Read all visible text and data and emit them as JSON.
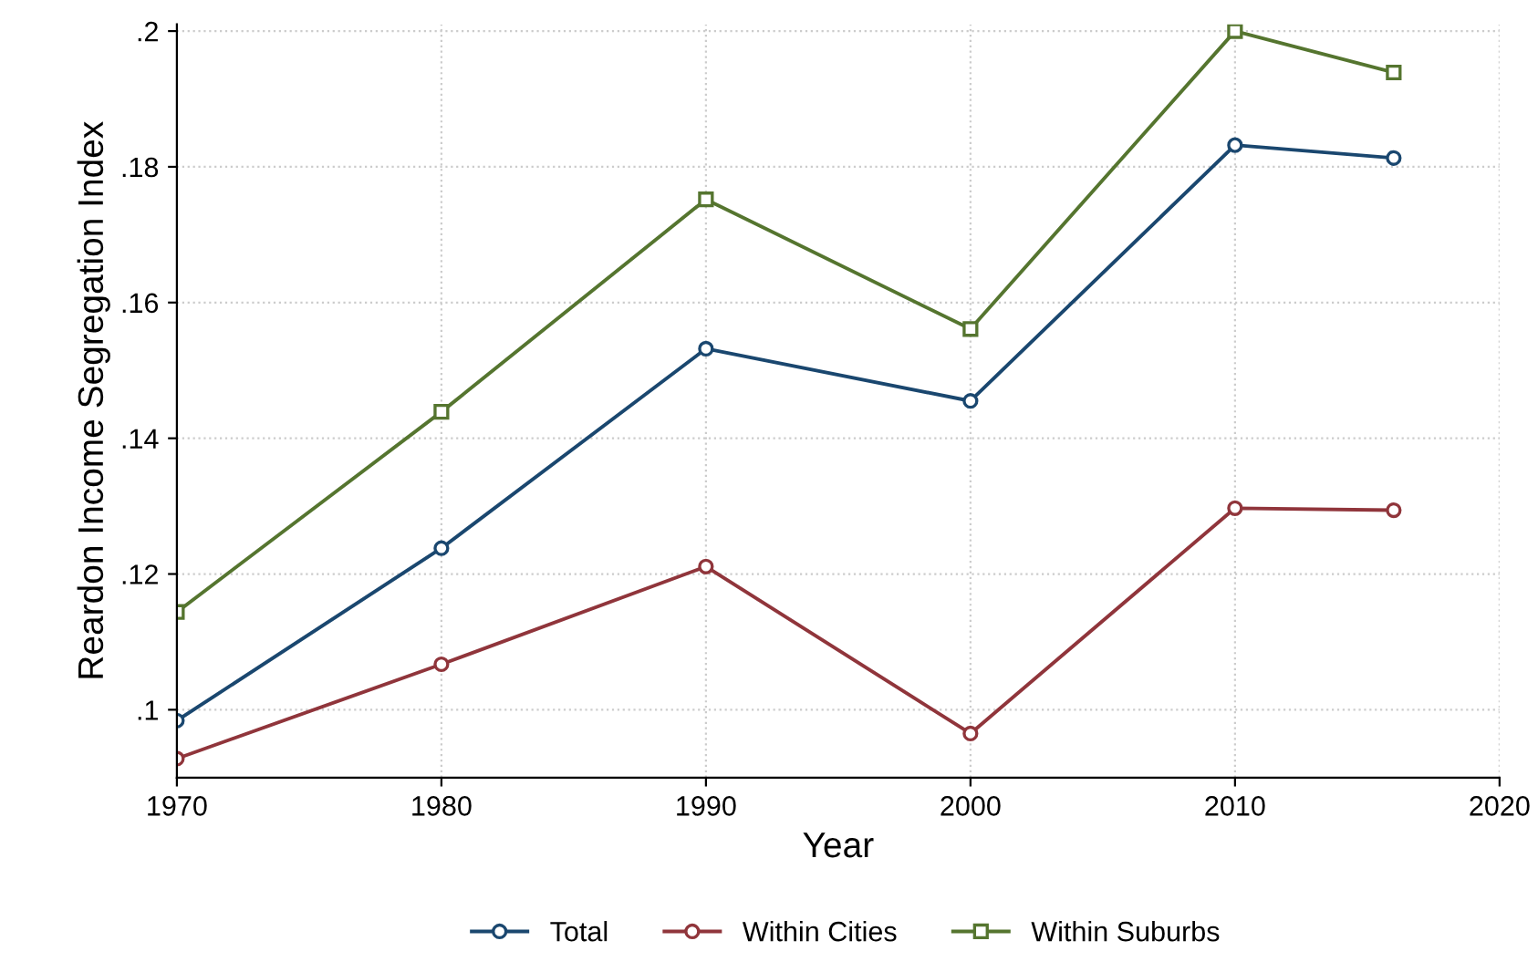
{
  "chart_data": {
    "type": "line",
    "xlabel": "Year",
    "ylabel": "Reardon Income Segregation Index",
    "x": [
      1970,
      1980,
      1990,
      2000,
      2010,
      2016
    ],
    "series": [
      {
        "name": "Total",
        "color": "#1a476f",
        "marker": "circle",
        "values": [
          0.0984,
          0.1238,
          0.1532,
          0.1455,
          0.1832,
          0.1813
        ]
      },
      {
        "name": "Within Cities",
        "color": "#90353b",
        "marker": "circle",
        "values": [
          0.0928,
          0.1067,
          0.1211,
          0.0965,
          0.1297,
          0.1294
        ]
      },
      {
        "name": "Within Suburbs",
        "color": "#55752f",
        "marker": "square",
        "values": [
          0.1144,
          0.1439,
          0.1752,
          0.1561,
          0.2,
          0.1939
        ]
      }
    ],
    "xlim": [
      1970,
      2020
    ],
    "xticks": [
      1970,
      1980,
      1990,
      2000,
      2010,
      2020
    ],
    "ylim": [
      0.09,
      0.201
    ],
    "yticks": [
      {
        "value": 0.1,
        "label": ".1"
      },
      {
        "value": 0.12,
        "label": ".12"
      },
      {
        "value": 0.14,
        "label": ".14"
      },
      {
        "value": 0.16,
        "label": ".16"
      },
      {
        "value": 0.18,
        "label": ".18"
      },
      {
        "value": 0.2,
        "label": ".2"
      }
    ],
    "grid": true,
    "legend": "bottom",
    "line_style": "solid"
  }
}
